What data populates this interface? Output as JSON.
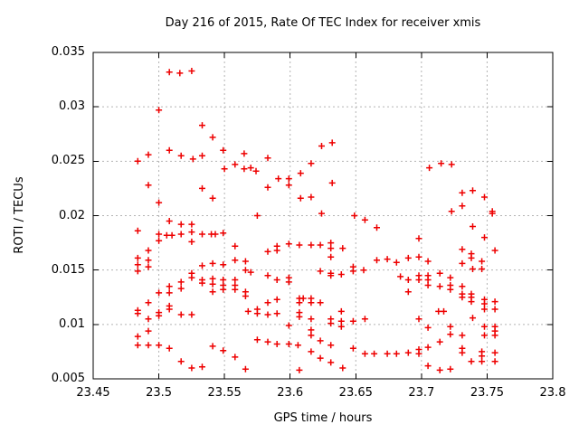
{
  "colors": {
    "marker": "#ee0000",
    "grid": "#b3b3b3",
    "axis": "#000000",
    "text": "#000000",
    "background": "#ffffff"
  },
  "chart_data": {
    "type": "scatter",
    "title": "Day 216 of 2015, Rate Of TEC Index for receiver xmis",
    "xlabel": "GPS time / hours",
    "ylabel": "ROTI / TECUs",
    "xlim": [
      23.45,
      23.8
    ],
    "ylim": [
      0.005,
      0.035
    ],
    "xticks": [
      23.45,
      23.5,
      23.55,
      23.6,
      23.65,
      23.7,
      23.75,
      23.8
    ],
    "yticks": [
      0.005,
      0.01,
      0.015,
      0.02,
      0.025,
      0.03,
      0.035
    ],
    "xtick_labels": [
      "23.45",
      "23.5",
      "23.55",
      "23.6",
      "23.65",
      "23.7",
      "23.75",
      "23.8"
    ],
    "ytick_labels": [
      "0.005",
      "0.01",
      "0.015",
      "0.02",
      "0.025",
      "0.03",
      "0.035"
    ],
    "grid": true,
    "legend": "none",
    "marker": {
      "shape": "plus",
      "size": 7,
      "color": "#ee0000"
    },
    "series": [
      {
        "name": "ROTI",
        "points": [
          [
            23.508,
            0.0332
          ],
          [
            23.516,
            0.0331
          ],
          [
            23.525,
            0.0333
          ],
          [
            23.5,
            0.0297
          ],
          [
            23.533,
            0.0283
          ],
          [
            23.541,
            0.0272
          ],
          [
            23.508,
            0.026
          ],
          [
            23.492,
            0.0256
          ],
          [
            23.517,
            0.0255
          ],
          [
            23.484,
            0.025
          ],
          [
            23.526,
            0.0252
          ],
          [
            23.533,
            0.0255
          ],
          [
            23.549,
            0.026
          ],
          [
            23.565,
            0.0257
          ],
          [
            23.55,
            0.0243
          ],
          [
            23.558,
            0.0247
          ],
          [
            23.565,
            0.0243
          ],
          [
            23.492,
            0.0228
          ],
          [
            23.533,
            0.0225
          ],
          [
            23.541,
            0.0216
          ],
          [
            23.5,
            0.0212
          ],
          [
            23.624,
            0.0264
          ],
          [
            23.632,
            0.0267
          ],
          [
            23.583,
            0.0253
          ],
          [
            23.57,
            0.0244
          ],
          [
            23.574,
            0.0241
          ],
          [
            23.616,
            0.0248
          ],
          [
            23.608,
            0.0239
          ],
          [
            23.591,
            0.0234
          ],
          [
            23.599,
            0.0234
          ],
          [
            23.599,
            0.0228
          ],
          [
            23.583,
            0.0226
          ],
          [
            23.632,
            0.023
          ],
          [
            23.608,
            0.0216
          ],
          [
            23.616,
            0.0217
          ],
          [
            23.624,
            0.0202
          ],
          [
            23.575,
            0.02
          ],
          [
            23.706,
            0.0244
          ],
          [
            23.715,
            0.0248
          ],
          [
            23.723,
            0.0247
          ],
          [
            23.731,
            0.0221
          ],
          [
            23.739,
            0.0223
          ],
          [
            23.748,
            0.0217
          ],
          [
            23.731,
            0.0209
          ],
          [
            23.723,
            0.0204
          ],
          [
            23.754,
            0.0204
          ],
          [
            23.754,
            0.0202
          ],
          [
            23.739,
            0.019
          ],
          [
            23.508,
            0.0195
          ],
          [
            23.517,
            0.0192
          ],
          [
            23.525,
            0.0192
          ],
          [
            23.484,
            0.0186
          ],
          [
            23.5,
            0.0183
          ],
          [
            23.506,
            0.0182
          ],
          [
            23.51,
            0.0182
          ],
          [
            23.517,
            0.0183
          ],
          [
            23.525,
            0.0185
          ],
          [
            23.533,
            0.0183
          ],
          [
            23.54,
            0.0183
          ],
          [
            23.543,
            0.0183
          ],
          [
            23.549,
            0.0184
          ],
          [
            23.5,
            0.0177
          ],
          [
            23.525,
            0.0176
          ],
          [
            23.558,
            0.0172
          ],
          [
            23.492,
            0.0168
          ],
          [
            23.484,
            0.0161
          ],
          [
            23.492,
            0.0159
          ],
          [
            23.484,
            0.0155
          ],
          [
            23.492,
            0.0153
          ],
          [
            23.558,
            0.0159
          ],
          [
            23.566,
            0.0158
          ],
          [
            23.484,
            0.0149
          ],
          [
            23.533,
            0.0154
          ],
          [
            23.541,
            0.0156
          ],
          [
            23.549,
            0.0155
          ],
          [
            23.566,
            0.015
          ],
          [
            23.525,
            0.0147
          ],
          [
            23.525,
            0.0143
          ],
          [
            23.533,
            0.0141
          ],
          [
            23.541,
            0.0142
          ],
          [
            23.549,
            0.0141
          ],
          [
            23.558,
            0.0141
          ],
          [
            23.533,
            0.0138
          ],
          [
            23.541,
            0.0137
          ],
          [
            23.549,
            0.0136
          ],
          [
            23.558,
            0.0136
          ],
          [
            23.517,
            0.0139
          ],
          [
            23.508,
            0.0135
          ],
          [
            23.517,
            0.0133
          ],
          [
            23.5,
            0.0129
          ],
          [
            23.508,
            0.0129
          ],
          [
            23.541,
            0.013
          ],
          [
            23.549,
            0.0132
          ],
          [
            23.558,
            0.0132
          ],
          [
            23.566,
            0.013
          ],
          [
            23.566,
            0.0126
          ],
          [
            23.492,
            0.012
          ],
          [
            23.508,
            0.0117
          ],
          [
            23.508,
            0.0114
          ],
          [
            23.5,
            0.0111
          ],
          [
            23.5,
            0.0108
          ],
          [
            23.484,
            0.0113
          ],
          [
            23.484,
            0.011
          ],
          [
            23.517,
            0.0109
          ],
          [
            23.525,
            0.0109
          ],
          [
            23.492,
            0.0105
          ],
          [
            23.492,
            0.0094
          ],
          [
            23.484,
            0.0089
          ],
          [
            23.484,
            0.0081
          ],
          [
            23.492,
            0.0081
          ],
          [
            23.5,
            0.0081
          ],
          [
            23.508,
            0.0078
          ],
          [
            23.541,
            0.008
          ],
          [
            23.549,
            0.0076
          ],
          [
            23.558,
            0.007
          ],
          [
            23.517,
            0.0066
          ],
          [
            23.525,
            0.006
          ],
          [
            23.533,
            0.0061
          ],
          [
            23.566,
            0.0059
          ],
          [
            23.649,
            0.02
          ],
          [
            23.657,
            0.0196
          ],
          [
            23.666,
            0.0189
          ],
          [
            23.599,
            0.0174
          ],
          [
            23.59,
            0.0172
          ],
          [
            23.59,
            0.0168
          ],
          [
            23.583,
            0.0167
          ],
          [
            23.607,
            0.0173
          ],
          [
            23.616,
            0.0173
          ],
          [
            23.623,
            0.0173
          ],
          [
            23.631,
            0.0175
          ],
          [
            23.631,
            0.017
          ],
          [
            23.64,
            0.017
          ],
          [
            23.631,
            0.0162
          ],
          [
            23.666,
            0.0159
          ],
          [
            23.674,
            0.016
          ],
          [
            23.681,
            0.0157
          ],
          [
            23.648,
            0.0153
          ],
          [
            23.648,
            0.0149
          ],
          [
            23.656,
            0.015
          ],
          [
            23.623,
            0.0149
          ],
          [
            23.631,
            0.0147
          ],
          [
            23.631,
            0.0145
          ],
          [
            23.639,
            0.0146
          ],
          [
            23.57,
            0.0148
          ],
          [
            23.583,
            0.0145
          ],
          [
            23.59,
            0.0141
          ],
          [
            23.599,
            0.0143
          ],
          [
            23.599,
            0.0139
          ],
          [
            23.607,
            0.0124
          ],
          [
            23.61,
            0.0124
          ],
          [
            23.607,
            0.012
          ],
          [
            23.616,
            0.0124
          ],
          [
            23.616,
            0.012
          ],
          [
            23.623,
            0.012
          ],
          [
            23.59,
            0.0123
          ],
          [
            23.583,
            0.012
          ],
          [
            23.575,
            0.0114
          ],
          [
            23.575,
            0.011
          ],
          [
            23.568,
            0.0112
          ],
          [
            23.59,
            0.011
          ],
          [
            23.583,
            0.0109
          ],
          [
            23.599,
            0.0099
          ],
          [
            23.607,
            0.0111
          ],
          [
            23.607,
            0.0107
          ],
          [
            23.616,
            0.0105
          ],
          [
            23.631,
            0.0105
          ],
          [
            23.631,
            0.0101
          ],
          [
            23.639,
            0.0112
          ],
          [
            23.639,
            0.0103
          ],
          [
            23.639,
            0.0098
          ],
          [
            23.648,
            0.0103
          ],
          [
            23.657,
            0.0105
          ],
          [
            23.616,
            0.0095
          ],
          [
            23.616,
            0.009
          ],
          [
            23.623,
            0.0085
          ],
          [
            23.575,
            0.0086
          ],
          [
            23.583,
            0.0084
          ],
          [
            23.59,
            0.0082
          ],
          [
            23.599,
            0.0082
          ],
          [
            23.606,
            0.0081
          ],
          [
            23.631,
            0.0081
          ],
          [
            23.616,
            0.0075
          ],
          [
            23.623,
            0.0069
          ],
          [
            23.631,
            0.0065
          ],
          [
            23.64,
            0.006
          ],
          [
            23.648,
            0.0078
          ],
          [
            23.657,
            0.0073
          ],
          [
            23.664,
            0.0073
          ],
          [
            23.674,
            0.0073
          ],
          [
            23.681,
            0.0073
          ],
          [
            23.607,
            0.0058
          ],
          [
            23.698,
            0.0179
          ],
          [
            23.748,
            0.018
          ],
          [
            23.731,
            0.0169
          ],
          [
            23.756,
            0.0168
          ],
          [
            23.738,
            0.0165
          ],
          [
            23.738,
            0.0161
          ],
          [
            23.69,
            0.0161
          ],
          [
            23.698,
            0.0162
          ],
          [
            23.705,
            0.0158
          ],
          [
            23.731,
            0.0156
          ],
          [
            23.739,
            0.0151
          ],
          [
            23.746,
            0.0158
          ],
          [
            23.746,
            0.0151
          ],
          [
            23.714,
            0.0147
          ],
          [
            23.684,
            0.0144
          ],
          [
            23.69,
            0.0141
          ],
          [
            23.698,
            0.0145
          ],
          [
            23.698,
            0.0141
          ],
          [
            23.705,
            0.0145
          ],
          [
            23.705,
            0.0141
          ],
          [
            23.705,
            0.0136
          ],
          [
            23.714,
            0.0135
          ],
          [
            23.722,
            0.0143
          ],
          [
            23.722,
            0.0136
          ],
          [
            23.722,
            0.0132
          ],
          [
            23.731,
            0.0135
          ],
          [
            23.731,
            0.0128
          ],
          [
            23.731,
            0.0125
          ],
          [
            23.738,
            0.0128
          ],
          [
            23.738,
            0.0125
          ],
          [
            23.738,
            0.0121
          ],
          [
            23.69,
            0.013
          ],
          [
            23.713,
            0.0112
          ],
          [
            23.717,
            0.0112
          ],
          [
            23.748,
            0.0123
          ],
          [
            23.748,
            0.0119
          ],
          [
            23.748,
            0.0114
          ],
          [
            23.756,
            0.0121
          ],
          [
            23.756,
            0.0114
          ],
          [
            23.698,
            0.0105
          ],
          [
            23.739,
            0.0106
          ],
          [
            23.705,
            0.0097
          ],
          [
            23.722,
            0.0098
          ],
          [
            23.748,
            0.0098
          ],
          [
            23.756,
            0.0098
          ],
          [
            23.756,
            0.0094
          ],
          [
            23.748,
            0.009
          ],
          [
            23.756,
            0.009
          ],
          [
            23.722,
            0.0091
          ],
          [
            23.731,
            0.009
          ],
          [
            23.714,
            0.0084
          ],
          [
            23.705,
            0.0079
          ],
          [
            23.698,
            0.0077
          ],
          [
            23.698,
            0.0073
          ],
          [
            23.69,
            0.0074
          ],
          [
            23.731,
            0.0078
          ],
          [
            23.731,
            0.0074
          ],
          [
            23.738,
            0.0066
          ],
          [
            23.746,
            0.0075
          ],
          [
            23.746,
            0.0071
          ],
          [
            23.746,
            0.0066
          ],
          [
            23.756,
            0.0074
          ],
          [
            23.756,
            0.0066
          ],
          [
            23.705,
            0.0062
          ],
          [
            23.714,
            0.0058
          ],
          [
            23.722,
            0.0059
          ]
        ]
      }
    ]
  }
}
